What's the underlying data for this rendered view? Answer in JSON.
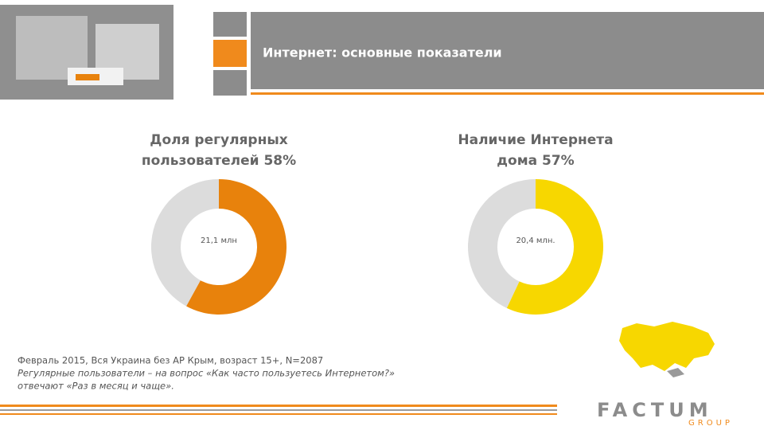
{
  "header": {
    "title": "Интернет: основные показатели"
  },
  "chart_data": [
    {
      "type": "pie",
      "title": [
        "Доля регулярных",
        "пользователей 58%"
      ],
      "values": [
        58,
        42
      ],
      "colors": [
        "#e8820c",
        "#dcdcdc"
      ],
      "center_label": "21,1 млн"
    },
    {
      "type": "pie",
      "title": [
        "Наличие Интернета",
        "дома 57%"
      ],
      "values": [
        57,
        43
      ],
      "colors": [
        "#f7d700",
        "#dcdcdc"
      ],
      "center_label": "20,4 млн."
    }
  ],
  "footnote": [
    "Февраль 2015, Вся Украина без АР Крым, возраст 15+, N=2087",
    "Регулярные пользователи – на вопрос «Как часто пользуетесь Интернетом?»",
    "отвечают «Раз в месяц и чаще»."
  ],
  "logo": {
    "name": "FACTUM",
    "sub": "GROUP"
  }
}
